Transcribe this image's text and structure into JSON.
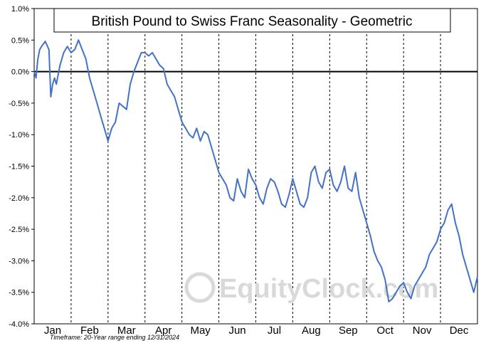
{
  "chart_data": {
    "type": "line",
    "title": "British Pound to Swiss Franc Seasonality - Geometric",
    "footnote": "Timeframe: 20-Year range ending 12/31/2024",
    "watermark": "EquityClock.com",
    "y_tick_labels": [
      "1.0%",
      "0.5%",
      "0.0%",
      "-0.5%",
      "-1.0%",
      "-1.5%",
      "-2.0%",
      "-2.5%",
      "-3.0%",
      "-3.5%",
      "-4.0%"
    ],
    "y_ticks": [
      1.0,
      0.5,
      0.0,
      -0.5,
      -1.0,
      -1.5,
      -2.0,
      -2.5,
      -3.0,
      -3.5,
      -4.0
    ],
    "ylim": [
      -4.0,
      1.0
    ],
    "xlim": [
      0,
      12
    ],
    "categories": [
      "Jan",
      "Feb",
      "Mar",
      "Apr",
      "May",
      "Jun",
      "Jul",
      "Aug",
      "Sep",
      "Oct",
      "Nov",
      "Dec"
    ],
    "grid": "vertical dashed at month boundaries",
    "line_color": "#4472c4",
    "series": [
      {
        "x": [
          0.0,
          0.05,
          0.1,
          0.15,
          0.2,
          0.3,
          0.4,
          0.45,
          0.5,
          0.55,
          0.6,
          0.7,
          0.8,
          0.9,
          1.0,
          1.1,
          1.2,
          1.3,
          1.4,
          1.5,
          1.6,
          1.7,
          1.8,
          1.9,
          2.0,
          2.1,
          2.2,
          2.3,
          2.4,
          2.5,
          2.6,
          2.7,
          2.8,
          2.9,
          3.0,
          3.1,
          3.2,
          3.3,
          3.4,
          3.5,
          3.6,
          3.7,
          3.8,
          3.9,
          4.0,
          4.1,
          4.2,
          4.3,
          4.4,
          4.5,
          4.6,
          4.7,
          4.8,
          4.9,
          5.0,
          5.1,
          5.2,
          5.3,
          5.4,
          5.5,
          5.6,
          5.7,
          5.8,
          5.9,
          6.0,
          6.1,
          6.2,
          6.3,
          6.4,
          6.5,
          6.6,
          6.7,
          6.8,
          6.9,
          7.0,
          7.1,
          7.2,
          7.3,
          7.4,
          7.5,
          7.6,
          7.7,
          7.8,
          7.9,
          8.0,
          8.1,
          8.2,
          8.3,
          8.4,
          8.5,
          8.6,
          8.7,
          8.8,
          8.9,
          9.0,
          9.1,
          9.2,
          9.3,
          9.4,
          9.5,
          9.6,
          9.7,
          9.8,
          9.9,
          10.0,
          10.1,
          10.2,
          10.3,
          10.4,
          10.5,
          10.6,
          10.7,
          10.8,
          10.9,
          11.0,
          11.1,
          11.2,
          11.3,
          11.4,
          11.5,
          11.6,
          11.7,
          11.8,
          11.9,
          12.0
        ],
        "values": [
          0.0,
          -0.1,
          0.2,
          0.35,
          0.4,
          0.48,
          0.35,
          -0.4,
          -0.2,
          -0.1,
          -0.2,
          0.1,
          0.3,
          0.4,
          0.3,
          0.35,
          0.5,
          0.35,
          0.2,
          -0.1,
          -0.3,
          -0.5,
          -0.7,
          -0.9,
          -1.1,
          -0.9,
          -0.8,
          -0.5,
          -0.55,
          -0.6,
          -0.2,
          0.0,
          0.15,
          0.3,
          0.3,
          0.25,
          0.3,
          0.2,
          0.1,
          0.05,
          -0.2,
          -0.3,
          -0.4,
          -0.6,
          -0.8,
          -0.9,
          -1.0,
          -1.05,
          -0.9,
          -1.1,
          -0.95,
          -1.0,
          -1.2,
          -1.4,
          -1.6,
          -1.7,
          -1.8,
          -2.0,
          -2.05,
          -1.7,
          -1.9,
          -2.0,
          -1.55,
          -1.7,
          -1.8,
          -2.0,
          -2.1,
          -1.85,
          -1.7,
          -1.75,
          -1.9,
          -2.1,
          -2.15,
          -1.95,
          -1.7,
          -1.9,
          -2.1,
          -2.15,
          -2.0,
          -1.6,
          -1.5,
          -1.75,
          -1.85,
          -1.6,
          -1.55,
          -1.8,
          -1.9,
          -1.75,
          -1.5,
          -1.85,
          -1.9,
          -1.6,
          -2.0,
          -2.2,
          -2.4,
          -2.6,
          -2.85,
          -3.0,
          -3.1,
          -3.3,
          -3.65,
          -3.6,
          -3.5,
          -3.4,
          -3.35,
          -3.5,
          -3.6,
          -3.4,
          -3.3,
          -3.2,
          -3.1,
          -2.9,
          -2.8,
          -2.7,
          -2.5,
          -2.4,
          -2.2,
          -2.1,
          -2.4,
          -2.6,
          -2.9,
          -3.1,
          -3.3,
          -3.5,
          -3.25
        ]
      }
    ]
  }
}
